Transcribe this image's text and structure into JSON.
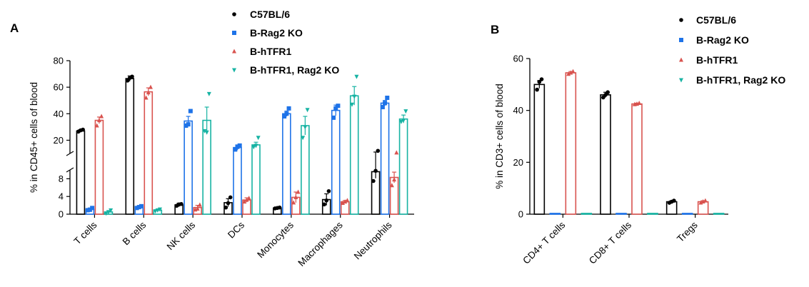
{
  "chart_data": [
    {
      "panel": "A",
      "type": "bar",
      "title": "",
      "xlabel": "",
      "ylabel": "% in CD45+ cells of blood",
      "y_axis_break": {
        "lower": [
          0,
          10
        ],
        "upper": [
          10,
          80
        ]
      },
      "yticks_lower": [
        0,
        4,
        8
      ],
      "yticks_upper": [
        20,
        40,
        60,
        80
      ],
      "ylim": [
        0,
        80
      ],
      "categories": [
        "T cells",
        "B cells",
        "NK cells",
        "DCs",
        "Monocytes",
        "Macrophages",
        "Neutrophils"
      ],
      "series": [
        {
          "name": "C57BL/6",
          "color": "#000000",
          "marker": "circle",
          "values": [
            27,
            66.5,
            2.1,
            2.6,
            1.4,
            3.3,
            9.6
          ],
          "errors": [
            1,
            2,
            0.4,
            0.9,
            0.2,
            1.3,
            1.5
          ],
          "points": [
            [
              26.5,
              27.5,
              28
            ],
            [
              65,
              67,
              68
            ],
            [
              1.9,
              2.2,
              2.3
            ],
            [
              1.5,
              2.5,
              3.8
            ],
            [
              1.3,
              1.4,
              1.5
            ],
            [
              2.2,
              3.1,
              5.2
            ],
            [
              7.5,
              9.8,
              12
            ]
          ]
        },
        {
          "name": "B-Rag2 KO",
          "color": "#1e73e8",
          "marker": "square",
          "values": [
            1.1,
            1.6,
            34.5,
            14.5,
            40,
            42.5,
            48
          ],
          "errors": [
            0.3,
            0.2,
            3.5,
            2,
            2,
            4,
            2
          ],
          "points": [
            [
              0.9,
              1.0,
              1.4
            ],
            [
              1.4,
              1.6,
              1.8
            ],
            [
              31,
              32,
              42
            ],
            [
              13,
              15,
              16
            ],
            [
              38,
              40,
              44
            ],
            [
              37,
              44,
              46
            ],
            [
              45,
              48,
              52
            ]
          ]
        },
        {
          "name": "B-hTFR1",
          "color": "#d9534f",
          "marker": "triangle-up",
          "values": [
            35,
            56.5,
            1.5,
            3.2,
            3.8,
            2.8,
            8.3
          ],
          "errors": [
            2.5,
            3,
            0.5,
            0.5,
            1.2,
            0.3,
            1.2
          ],
          "points": [
            [
              31,
              35,
              38
            ],
            [
              52,
              56,
              60
            ],
            [
              1.0,
              1.2,
              2.1
            ],
            [
              2.8,
              3.2,
              3.6
            ],
            [
              2.6,
              3.8,
              5.0
            ],
            [
              2.5,
              2.8,
              3.1
            ],
            [
              6.5,
              7.8,
              10.6
            ]
          ]
        },
        {
          "name": "B-hTFR1, Rag2 KO",
          "color": "#17b3a3",
          "marker": "triangle-down",
          "values": [
            0.5,
            0.9,
            35,
            16.5,
            31,
            53.5,
            36
          ],
          "errors": [
            0.3,
            0.2,
            10,
            2,
            7,
            7,
            3
          ],
          "points": [
            [
              0.2,
              0.5,
              0.9
            ],
            [
              0.7,
              0.9,
              1.1
            ],
            [
              27,
              26,
              55
            ],
            [
              15,
              16,
              22
            ],
            [
              22,
              30,
              43
            ],
            [
              47,
              53,
              68
            ],
            [
              34,
              35,
              42
            ]
          ]
        }
      ],
      "legend": "top-right",
      "panel_label_text": "A"
    },
    {
      "panel": "B",
      "type": "bar",
      "title": "",
      "xlabel": "",
      "ylabel": "% in CD3+ cells of blood",
      "ylim": [
        0,
        60
      ],
      "yticks": [
        0,
        20,
        40,
        60
      ],
      "categories": [
        "CD4+ T cells",
        "CD8+ T cells",
        "Tregs"
      ],
      "series": [
        {
          "name": "C57BL/6",
          "color": "#000000",
          "marker": "circle",
          "values": [
            50,
            46,
            4.8
          ],
          "errors": [
            1.5,
            1.0,
            0.4
          ],
          "points": [
            [
              48,
              51,
              52
            ],
            [
              45,
              46,
              47
            ],
            [
              4.4,
              4.8,
              5.2
            ]
          ]
        },
        {
          "name": "B-Rag2 KO",
          "color": "#1e73e8",
          "marker": "square",
          "values": [
            0.3,
            0.3,
            0.3
          ],
          "errors": [
            0,
            0,
            0
          ],
          "points": [
            [
              0.3,
              0.3,
              0.3
            ],
            [
              0.3,
              0.3,
              0.3
            ],
            [
              0.3,
              0.3,
              0.3
            ]
          ]
        },
        {
          "name": "B-hTFR1",
          "color": "#d9534f",
          "marker": "triangle-up",
          "values": [
            54.5,
            42.5,
            4.8
          ],
          "errors": [
            0.5,
            0.3,
            0.4
          ],
          "points": [
            [
              54,
              54.5,
              55
            ],
            [
              42.3,
              42.5,
              42.8
            ],
            [
              4.4,
              4.8,
              5.2
            ]
          ]
        },
        {
          "name": "B-hTFR1, Rag2 KO",
          "color": "#17b3a3",
          "marker": "triangle-down",
          "values": [
            0.3,
            0.3,
            0.3
          ],
          "errors": [
            0,
            0,
            0
          ],
          "points": [
            [
              0.3,
              0.3,
              0.3
            ],
            [
              0.3,
              0.3,
              0.3
            ],
            [
              0.3,
              0.3,
              0.3
            ]
          ]
        }
      ],
      "legend": "top-right",
      "panel_label_text": "B"
    }
  ]
}
